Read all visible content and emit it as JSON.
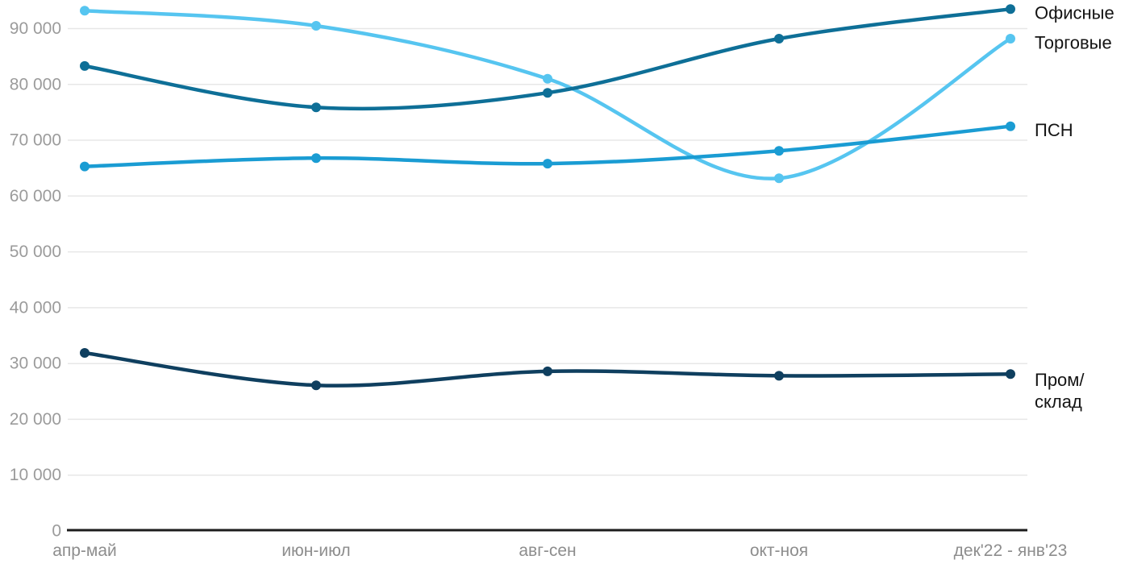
{
  "chart_data": {
    "type": "line",
    "title": "",
    "xlabel": "",
    "ylabel": "",
    "categories": [
      "апр-май",
      "июн-июл",
      "авг-сен",
      "окт-ноя",
      "дек'22 - янв'23"
    ],
    "y_axis": {
      "min": 0,
      "max": 95000,
      "tick_step": 10000,
      "tick_values": [
        0,
        10000,
        20000,
        30000,
        40000,
        50000,
        60000,
        70000,
        80000,
        90000
      ],
      "tick_labels": [
        "0",
        "10 000",
        "20 000",
        "30 000",
        "40 000",
        "50 000",
        "60 000",
        "70 000",
        "80 000",
        "90 000"
      ]
    },
    "grid": true,
    "legend_position": "line-end-right",
    "series": [
      {
        "id": "torgovye",
        "label": "Торговые",
        "label_lines": [
          "Торговые"
        ],
        "color": "#56c5f0",
        "values": [
          93200,
          90500,
          81000,
          63200,
          88200
        ]
      },
      {
        "id": "psn",
        "label": "ПСН",
        "label_lines": [
          "ПСН"
        ],
        "color": "#1a9cd3",
        "values": [
          65300,
          66800,
          65800,
          68100,
          72500
        ]
      },
      {
        "id": "ofisnye",
        "label": "Офисные",
        "label_lines": [
          "Офисные"
        ],
        "color": "#0e6f97",
        "values": [
          83300,
          75900,
          78500,
          88200,
          93500
        ]
      },
      {
        "id": "prom-sklad",
        "label": "Пром/склад",
        "label_lines": [
          "Пром/",
          "склад"
        ],
        "color": "#0f3f5f",
        "values": [
          31900,
          26100,
          28600,
          27800,
          28100
        ]
      }
    ]
  },
  "colors": {
    "grid_line": "#e7e7e7",
    "axis_line": "#1c1c1c",
    "y_tick_text": "#9b9b9b",
    "x_tick_text": "#8d8d8d",
    "series_label_text": "#141414",
    "background": "#ffffff"
  }
}
